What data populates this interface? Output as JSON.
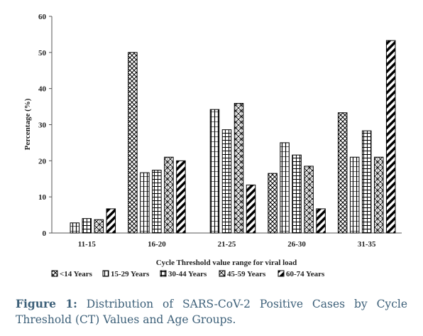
{
  "chart_data": {
    "type": "bar",
    "categories": [
      "11-15",
      "16-20",
      "21-25",
      "26-30",
      "31-35"
    ],
    "series": [
      {
        "name": "<14 Years",
        "values": [
          0,
          50,
          0,
          16.5,
          33.3
        ]
      },
      {
        "name": "15-29 Years",
        "values": [
          2.8,
          16.7,
          34.2,
          25,
          21
        ]
      },
      {
        "name": "30-44 Years",
        "values": [
          4,
          17.4,
          28.6,
          21.6,
          28.3
        ]
      },
      {
        "name": "45-59 Years",
        "values": [
          3.7,
          21,
          35.9,
          18.5,
          21
        ]
      },
      {
        "name": "60-74 Years",
        "values": [
          6.7,
          20,
          13.3,
          6.7,
          53.3
        ]
      }
    ],
    "title": "",
    "xlabel": "Cycle Threshold value range for viral load",
    "ylabel": "Percentage (%)",
    "ylim": [
      0,
      60
    ],
    "yticks": [
      "0",
      "10",
      "20",
      "30",
      "40",
      "50",
      "60"
    ],
    "grid": false,
    "legend_position": "bottom"
  },
  "caption": {
    "label": "Figure 1:",
    "text": " Distribution of SARS-CoV-2 Positive Cases by Cycle Threshold (CT) Values and Age Groups."
  }
}
